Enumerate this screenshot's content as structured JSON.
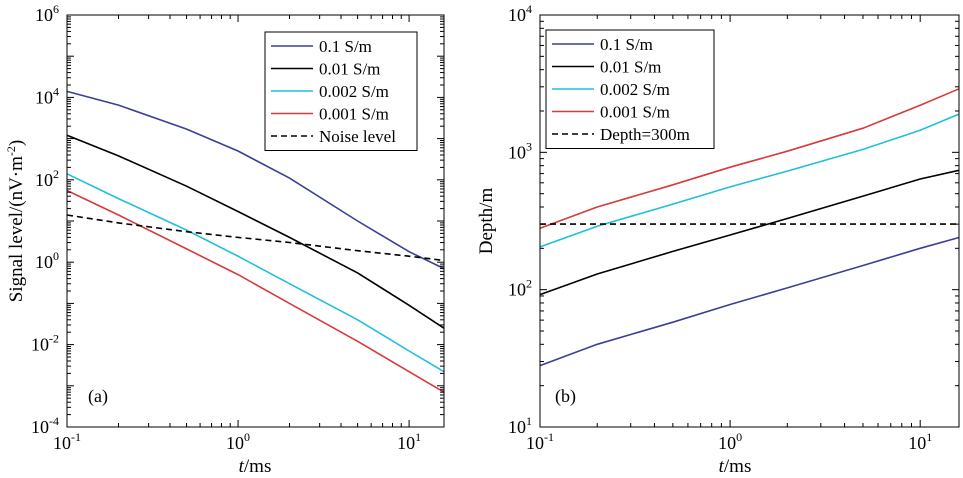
{
  "chart_data": [
    {
      "type": "line",
      "panel_label": "(a)",
      "xlabel_italic": "t",
      "xlabel_rest": "/ms",
      "ylabel_main": "Signal level/(nV·m",
      "ylabel_sup": "-2",
      "ylabel_end": ")",
      "x_log": true,
      "y_log": true,
      "xlim": [
        0.1,
        16
      ],
      "ylim": [
        0.0001,
        1000000
      ],
      "x_ticks": [
        {
          "base": "10",
          "exp": "-1",
          "value": 0.1
        },
        {
          "base": "10",
          "exp": "0",
          "value": 1
        },
        {
          "base": "10",
          "exp": "1",
          "value": 10
        }
      ],
      "y_ticks": [
        {
          "base": "10",
          "exp": "-4",
          "value": 0.0001
        },
        {
          "base": "10",
          "exp": "-2",
          "value": 0.01
        },
        {
          "base": "10",
          "exp": "0",
          "value": 1
        },
        {
          "base": "10",
          "exp": "2",
          "value": 100
        },
        {
          "base": "10",
          "exp": "4",
          "value": 10000
        },
        {
          "base": "10",
          "exp": "6",
          "value": 1000000
        }
      ],
      "legend_position": "top-right",
      "series": [
        {
          "name": "0.1 S/m",
          "color": "#3b3f95",
          "dash": "solid",
          "x": [
            0.1,
            0.2,
            0.5,
            1,
            2,
            5,
            10,
            16
          ],
          "y": [
            14000,
            6500,
            1700,
            500,
            110,
            10,
            1.8,
            0.7
          ]
        },
        {
          "name": "0.01 S/m",
          "color": "#000000",
          "dash": "solid",
          "x": [
            0.1,
            0.2,
            0.5,
            1,
            2,
            5,
            10,
            16
          ],
          "y": [
            1200,
            380,
            70,
            17,
            4,
            0.55,
            0.09,
            0.025
          ]
        },
        {
          "name": "0.002 S/m",
          "color": "#1fbfdc",
          "dash": "solid",
          "x": [
            0.1,
            0.2,
            0.5,
            1,
            2,
            5,
            10,
            16
          ],
          "y": [
            140,
            35,
            6,
            1.4,
            0.3,
            0.04,
            0.007,
            0.0022
          ]
        },
        {
          "name": "0.001 S/m",
          "color": "#d93a3a",
          "dash": "solid",
          "x": [
            0.1,
            0.2,
            0.5,
            1,
            2,
            5,
            10,
            16
          ],
          "y": [
            55,
            14,
            2.1,
            0.5,
            0.1,
            0.012,
            0.0022,
            0.0007
          ]
        },
        {
          "name": "Noise level",
          "color": "#000000",
          "dash": "dashed",
          "x": [
            0.1,
            0.2,
            0.5,
            1,
            2,
            5,
            10,
            16
          ],
          "y": [
            14,
            9,
            5.5,
            4,
            3,
            1.9,
            1.4,
            1.1
          ]
        }
      ]
    },
    {
      "type": "line",
      "panel_label": "(b)",
      "xlabel_italic": "t",
      "xlabel_rest": "/ms",
      "ylabel_main": "Depth/m",
      "x_log": true,
      "y_log": true,
      "xlim": [
        0.1,
        16
      ],
      "ylim": [
        10,
        10000
      ],
      "x_ticks": [
        {
          "base": "10",
          "exp": "-1",
          "value": 0.1
        },
        {
          "base": "10",
          "exp": "0",
          "value": 1
        },
        {
          "base": "10",
          "exp": "1",
          "value": 10
        }
      ],
      "y_ticks": [
        {
          "base": "10",
          "exp": "1",
          "value": 10
        },
        {
          "base": "10",
          "exp": "2",
          "value": 100
        },
        {
          "base": "10",
          "exp": "3",
          "value": 1000
        },
        {
          "base": "10",
          "exp": "4",
          "value": 10000
        }
      ],
      "legend_position": "top-left",
      "series": [
        {
          "name": "0.1 S/m",
          "color": "#3b3f95",
          "dash": "solid",
          "x": [
            0.1,
            0.2,
            0.5,
            1,
            2,
            5,
            10,
            16
          ],
          "y": [
            28,
            40,
            58,
            78,
            103,
            150,
            200,
            240
          ]
        },
        {
          "name": "0.01 S/m",
          "color": "#000000",
          "dash": "solid",
          "x": [
            0.1,
            0.2,
            0.5,
            1,
            2,
            5,
            10,
            16
          ],
          "y": [
            92,
            130,
            190,
            250,
            330,
            480,
            640,
            740
          ]
        },
        {
          "name": "0.002 S/m",
          "color": "#1fbfdc",
          "dash": "solid",
          "x": [
            0.1,
            0.2,
            0.5,
            1,
            2,
            5,
            10,
            16
          ],
          "y": [
            205,
            290,
            420,
            560,
            730,
            1050,
            1450,
            1900
          ]
        },
        {
          "name": "0.001 S/m",
          "color": "#d93a3a",
          "dash": "solid",
          "x": [
            0.1,
            0.2,
            0.5,
            1,
            2,
            5,
            10,
            16
          ],
          "y": [
            280,
            400,
            580,
            780,
            1020,
            1500,
            2200,
            2900
          ]
        },
        {
          "name": "Depth=300m",
          "color": "#000000",
          "dash": "dashed",
          "x": [
            0.1,
            16
          ],
          "y": [
            300,
            300
          ]
        }
      ]
    }
  ]
}
